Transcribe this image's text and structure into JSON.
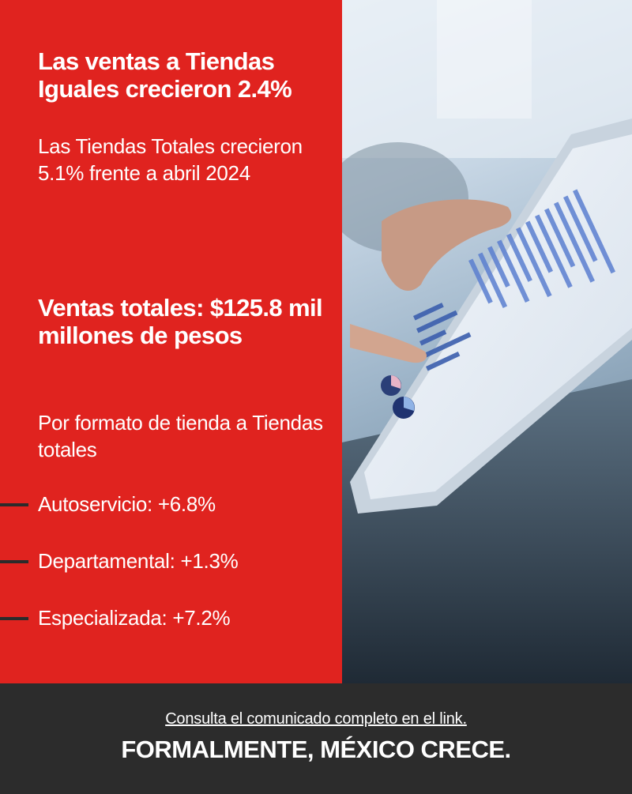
{
  "left_panel": {
    "headline": "Las ventas a Tiendas Iguales crecieron 2.4%",
    "subtext": "Las Tiendas Totales crecieron 5.1% frente a abril 2024",
    "total_sales": "Ventas totales: $125.8 mil millones de pesos",
    "format_title": "Por formato de tienda a Tiendas totales",
    "formats": [
      {
        "label": "Autoservicio: +6.8%"
      },
      {
        "label": "Departamental: +1.3%"
      },
      {
        "label": "Especializada: +7.2%"
      }
    ]
  },
  "footer": {
    "link_text": "Consulta el comunicado completo en el link.",
    "slogan": "FORMALMENTE, MÉXICO CRECE."
  },
  "colors": {
    "accent_red": "#e0231f",
    "footer_dark": "#2c2c2c",
    "text_white": "#ffffff"
  },
  "icons": {
    "list_bullet": "dash-icon",
    "photo": "tablet-with-charts-photo"
  }
}
